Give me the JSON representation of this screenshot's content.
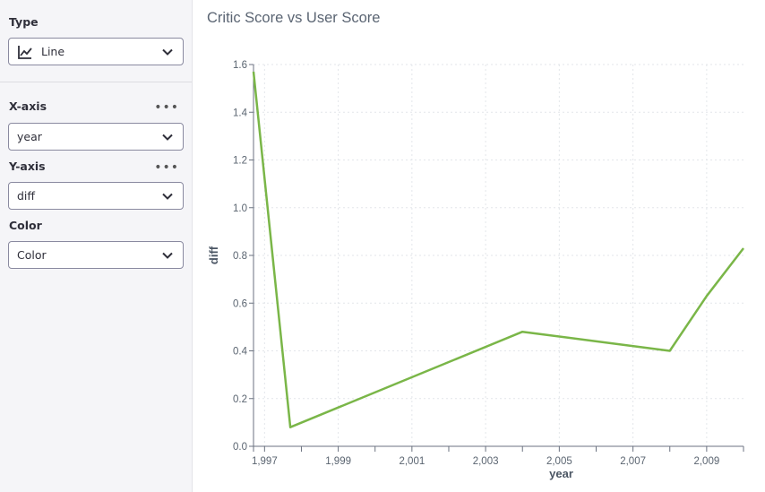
{
  "sidebar": {
    "type": {
      "label": "Type",
      "value": "Line",
      "icon": "line-chart-icon"
    },
    "x_axis": {
      "label": "X-axis",
      "value": "year",
      "more": "•••"
    },
    "y_axis": {
      "label": "Y-axis",
      "value": "diff",
      "more": "•••"
    },
    "color": {
      "label": "Color",
      "value": "Color"
    }
  },
  "chart_data": {
    "type": "line",
    "title": "Critic Score vs User Score",
    "xlabel": "year",
    "ylabel": "diff",
    "xlim": [
      1996.7,
      2010
    ],
    "ylim": [
      0,
      1.6
    ],
    "x_ticks": [
      "1,997",
      "1,999",
      "2,001",
      "2,003",
      "2,005",
      "2,007",
      "2,009"
    ],
    "y_ticks": [
      "0.0",
      "0.2",
      "0.4",
      "0.6",
      "0.8",
      "1.0",
      "1.2",
      "1.4",
      "1.6"
    ],
    "grid": true,
    "series_color": "#7ab648",
    "x": [
      1996.7,
      1997.7,
      2004,
      2008,
      2009,
      2010
    ],
    "y": [
      1.57,
      0.08,
      0.48,
      0.4,
      0.63,
      0.83
    ]
  }
}
